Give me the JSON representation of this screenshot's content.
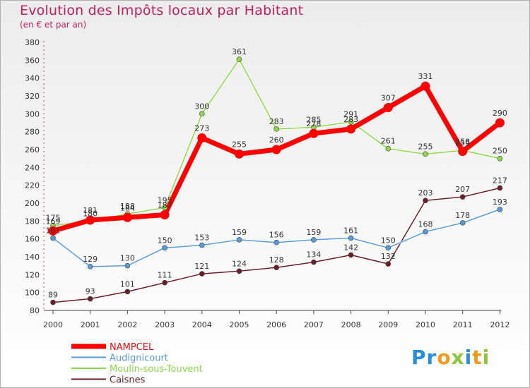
{
  "chart_data": {
    "type": "line",
    "title": "Evolution des Impôts locaux par Habitant",
    "subtitle": "(en € et par an)",
    "x": [
      "2000",
      "2001",
      "2002",
      "2003",
      "2004",
      "2005",
      "2006",
      "2007",
      "2008",
      "2009",
      "2010",
      "2011",
      "2012"
    ],
    "ylim": [
      80,
      380
    ],
    "yticks": [
      80,
      100,
      120,
      140,
      160,
      180,
      200,
      220,
      240,
      260,
      280,
      300,
      320,
      340,
      360,
      380
    ],
    "grid": false,
    "legend_position": "bottom-left",
    "series": [
      {
        "name": "Caisnes",
        "color": "#6b1e26",
        "values": [
          89,
          93,
          101,
          111,
          121,
          124,
          128,
          134,
          142,
          132,
          203,
          207,
          217
        ]
      },
      {
        "name": "Audignicourt",
        "color": "#5b9bd5",
        "values": [
          161,
          129,
          130,
          150,
          153,
          159,
          156,
          159,
          161,
          150,
          168,
          178,
          193
        ]
      },
      {
        "name": "Moulin-sous-Touvent",
        "color": "#8ed64d",
        "values": [
          175,
          180,
          188,
          195,
          300,
          361,
          283,
          285,
          291,
          261,
          255,
          259,
          250
        ]
      },
      {
        "name": "NAMPCEL",
        "color": "#ff0000",
        "values": [
          169,
          181,
          184,
          187,
          273,
          255,
          260,
          278,
          283,
          307,
          331,
          258,
          290
        ]
      }
    ],
    "legend": [
      "NAMPCEL",
      "Audignicourt",
      "Moulin-sous-Touvent",
      "Caisnes"
    ],
    "value_labels": {
      "Caisnes": [
        "89",
        "93",
        "101",
        "111",
        "121",
        "124",
        "128",
        "134",
        "142",
        "132",
        "203",
        "207",
        "217"
      ],
      "Audignicourt": [
        "161",
        "129",
        "130",
        "150",
        "153",
        "159",
        "156",
        "159",
        "161",
        "150",
        "168",
        "178",
        "193"
      ],
      "Moulin-sous-Touvent": [
        "175",
        "180",
        "188",
        "195",
        "300",
        "361",
        "283",
        "285",
        "291",
        "261",
        "255",
        "259",
        "250"
      ],
      "NAMPCEL": [
        "169",
        "181",
        "184",
        "187",
        "273",
        "255",
        "260",
        "278",
        "283",
        "307",
        "331",
        "258",
        "290"
      ]
    }
  },
  "brand": {
    "logo": "Proxiti"
  }
}
